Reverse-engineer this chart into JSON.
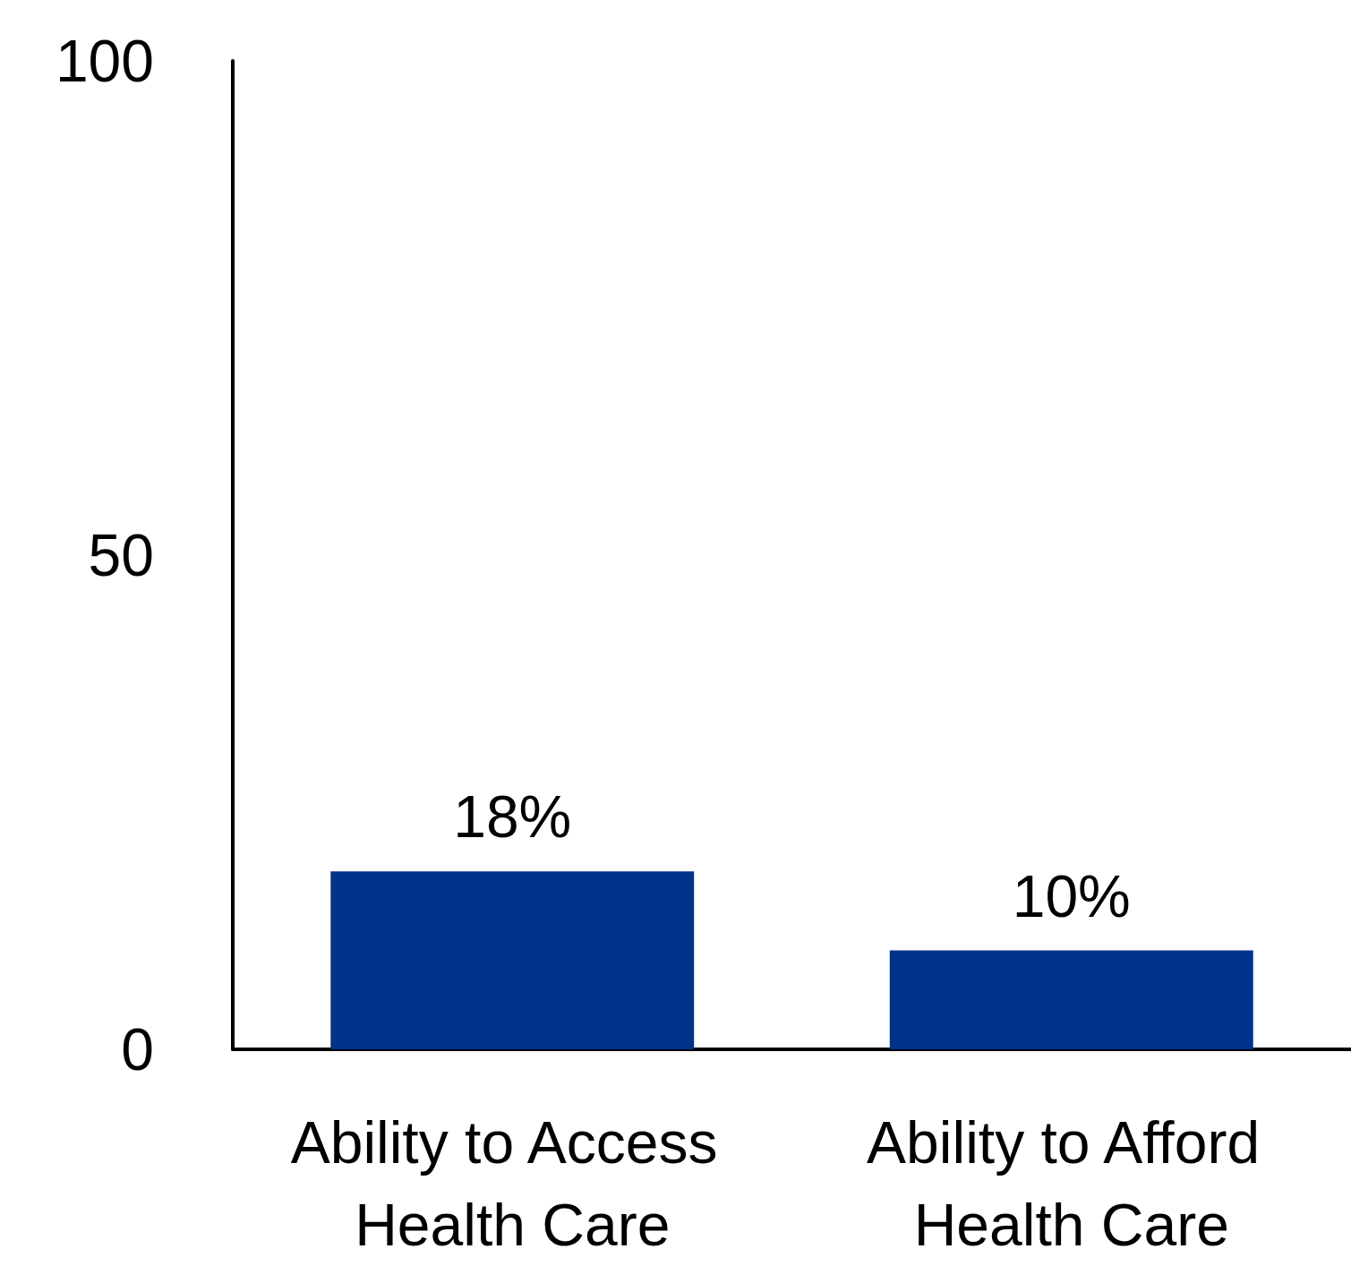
{
  "chart_data": {
    "type": "bar",
    "categories": [
      "Ability to Access Health Care",
      "Ability to Afford Health Care"
    ],
    "values": [
      18,
      10
    ],
    "value_labels": [
      "18%",
      "10%"
    ],
    "color": "#02338b",
    "ylim": [
      0,
      100
    ],
    "yticks": [
      0,
      50,
      100
    ]
  }
}
